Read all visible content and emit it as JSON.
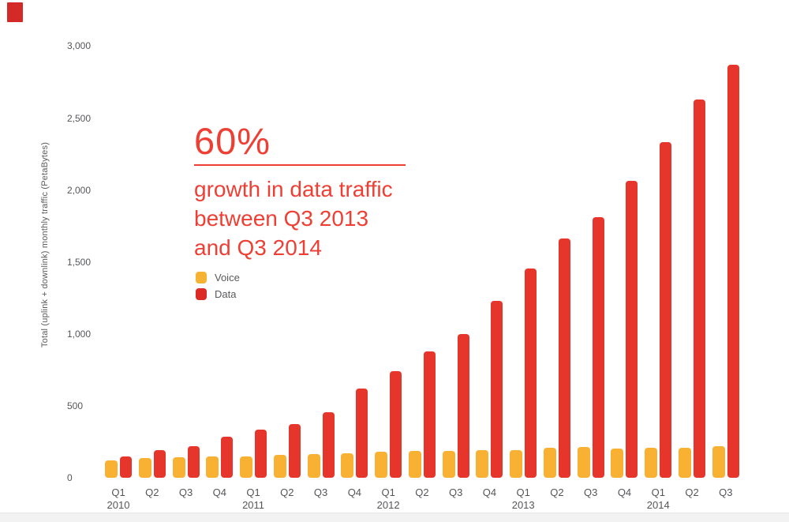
{
  "page": {
    "background": "#ffffff"
  },
  "corner_mark": {
    "color": "#d32a28"
  },
  "annotation": {
    "headline": "60%",
    "line1": "growth in data traffic",
    "line2": "between Q3 2013",
    "line3": "and Q3 2014",
    "color": "#ee3f34"
  },
  "legend": {
    "items": [
      {
        "label": "Voice",
        "color": "#f5b233"
      },
      {
        "label": "Data",
        "color": "#da2b25"
      }
    ]
  },
  "chart_data": {
    "type": "bar",
    "title": "",
    "xlabel": "",
    "ylabel": "Total (uplink + downlink) monthly traffic (PetaBytes)",
    "ylim": [
      0,
      3000
    ],
    "yticks": [
      0,
      500,
      1000,
      1500,
      2000,
      2500,
      3000
    ],
    "ytick_labels": [
      "0",
      "500",
      "1,000",
      "1,500",
      "2,000",
      "2,500",
      "3,000"
    ],
    "grid": false,
    "legend_position": "inside-upper-left",
    "categories": [
      "Q1 2010",
      "Q2 2010",
      "Q3 2010",
      "Q4 2010",
      "Q1 2011",
      "Q2 2011",
      "Q3 2011",
      "Q4 2011",
      "Q1 2012",
      "Q2 2012",
      "Q3 2012",
      "Q4 2012",
      "Q1 2013",
      "Q2 2013",
      "Q3 2013",
      "Q4 2013",
      "Q1 2014",
      "Q2 2014",
      "Q3 2014"
    ],
    "series": [
      {
        "name": "Voice",
        "color": "#f8b133",
        "values": [
          120,
          135,
          140,
          150,
          150,
          160,
          165,
          170,
          180,
          185,
          185,
          190,
          190,
          210,
          215,
          205,
          210,
          210,
          220
        ]
      },
      {
        "name": "Data",
        "color": "#e6352b",
        "values": [
          150,
          190,
          220,
          285,
          335,
          375,
          455,
          620,
          740,
          880,
          1000,
          1230,
          1455,
          1665,
          1810,
          2065,
          2335,
          2630,
          2870
        ]
      }
    ]
  }
}
